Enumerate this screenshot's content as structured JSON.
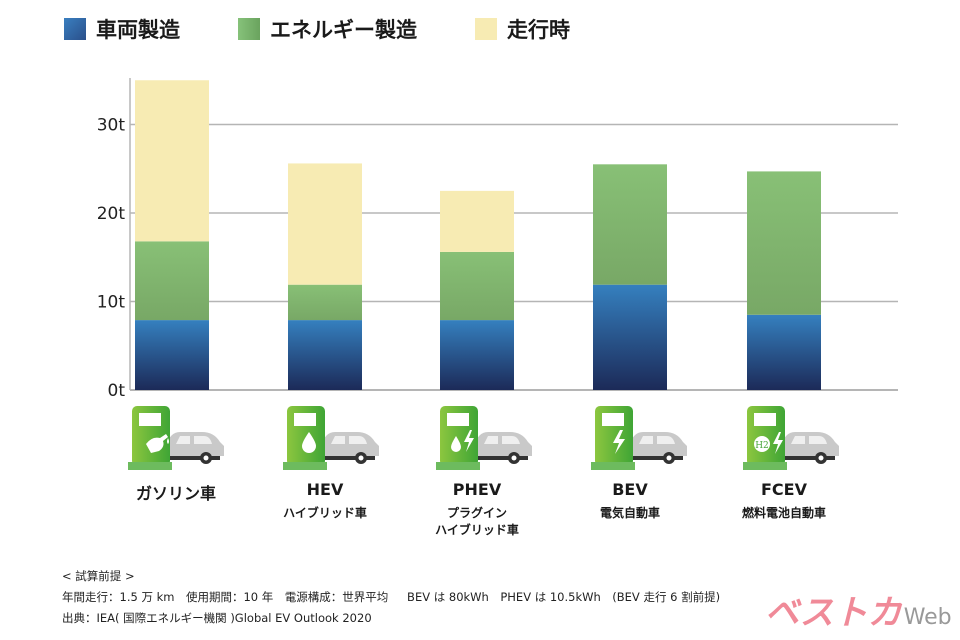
{
  "legend": [
    {
      "label": "車両製造",
      "color": "#3a76b4"
    },
    {
      "label": "エネルギー製造",
      "color": "#7db870"
    },
    {
      "label": "走行時",
      "color": "#f7ebb3"
    }
  ],
  "chart_data": {
    "type": "bar",
    "stacked": true,
    "title": "",
    "xlabel": "",
    "ylabel": "",
    "ylim": [
      0,
      35
    ],
    "yticks": [
      0,
      10,
      20,
      30
    ],
    "ytick_labels": [
      "0t",
      "10t",
      "20t",
      "30t"
    ],
    "grid": true,
    "legend_position": "top",
    "categories": [
      "ガソリン車",
      "HEV",
      "PHEV",
      "BEV",
      "FCEV"
    ],
    "category_subtitles": [
      "",
      "ハイブリッド車",
      "プラグイン\nハイブリッド車",
      "電気自動車",
      "燃料電池自動車"
    ],
    "series": [
      {
        "name": "車両製造",
        "values": [
          7.9,
          7.9,
          7.9,
          11.9,
          8.5
        ]
      },
      {
        "name": "エネルギー製造",
        "values": [
          8.9,
          4.0,
          7.7,
          13.6,
          16.2
        ]
      },
      {
        "name": "走行時",
        "values": [
          18.2,
          13.7,
          6.9,
          0,
          0
        ]
      }
    ]
  },
  "icons": [
    "gas-pump-car-icon",
    "fuel-drop-car-icon",
    "drop-bolt-car-icon",
    "bolt-car-icon",
    "h2-bolt-car-icon"
  ],
  "notes": {
    "header": "< 試算前提 >",
    "line1": "年間走行：1.5 万 km　使用期間：10 年　電源構成：世界平均　  BEV は 80kWh　PHEV は 10.5kWh　(BEV 走行 6 割前提)",
    "source": "出典：IEA( 国際エネルギー機関 )Global EV Outlook 2020"
  },
  "logo": {
    "main": "ベストカ",
    "suffix": "Web"
  }
}
